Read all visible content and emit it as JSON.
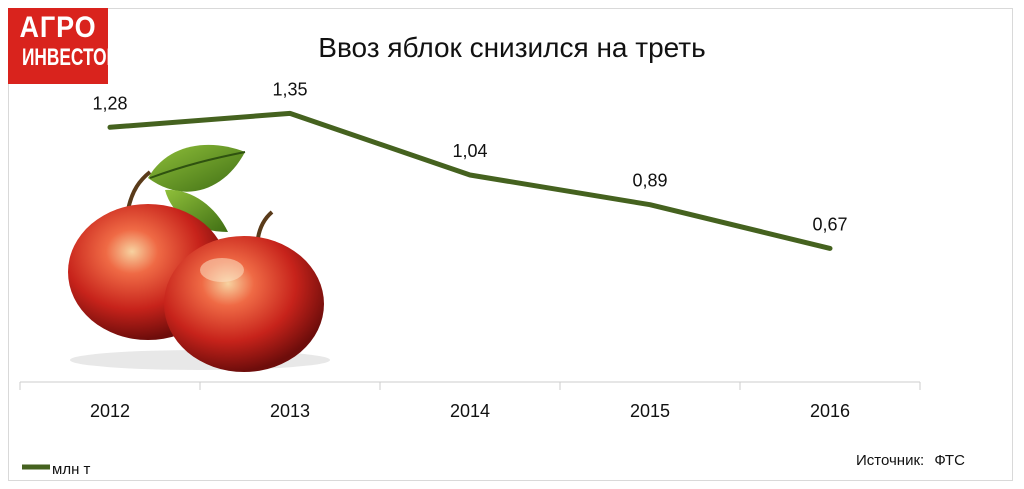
{
  "logo": {
    "line1": "АГРО",
    "line2": "ИНВЕСТОР"
  },
  "source": {
    "label": "Источник:",
    "value": "ФТС"
  },
  "colors": {
    "line": "#45621f",
    "logo_bg": "#d9231d",
    "apple": "#c7231b",
    "leaf": "#5f8a22"
  },
  "illustration": {
    "icon": "apples-icon"
  },
  "chart_data": {
    "type": "line",
    "title": "Ввоз яблок снизился на треть",
    "xlabel": "",
    "ylabel": "",
    "categories": [
      "2012",
      "2013",
      "2014",
      "2015",
      "2016"
    ],
    "series": [
      {
        "name": "млн т",
        "values": [
          1.28,
          1.35,
          1.04,
          0.89,
          0.67
        ],
        "labels": [
          "1,28",
          "1,35",
          "1,04",
          "0,89",
          "0,67"
        ]
      }
    ],
    "grid": false,
    "legend": "bottom-left"
  }
}
